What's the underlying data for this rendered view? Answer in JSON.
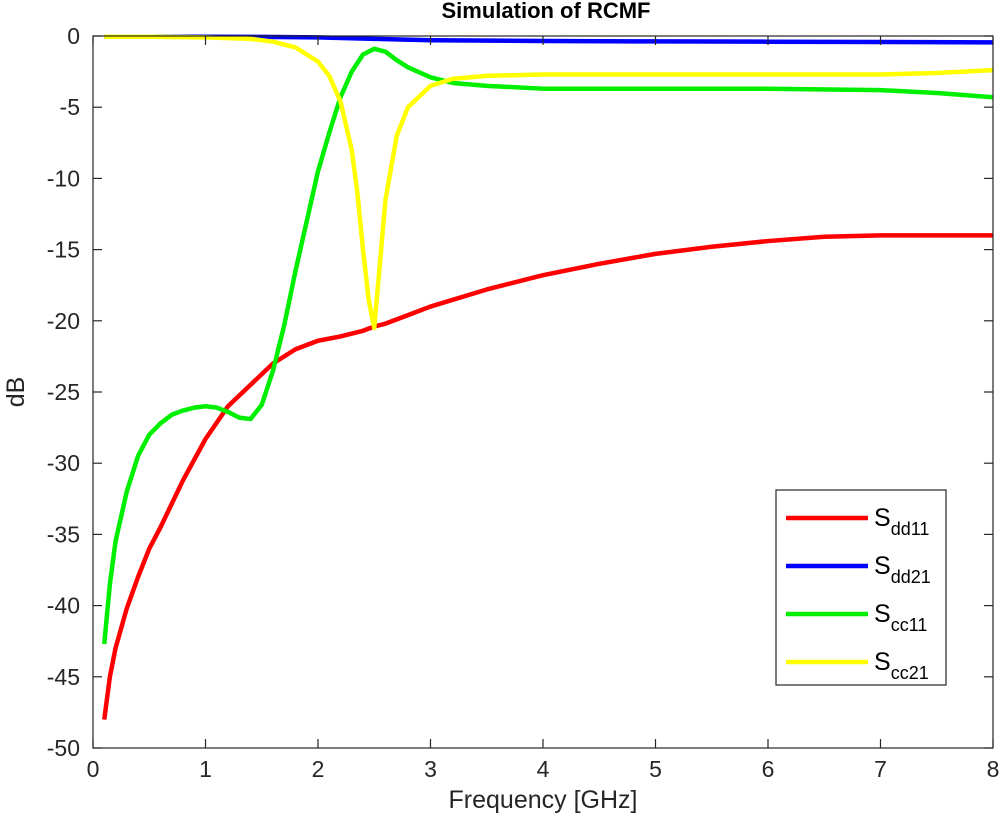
{
  "chart_data": {
    "type": "line",
    "title": "Simulation of RCMF",
    "xlabel": "Frequency [GHz]",
    "ylabel": "dB",
    "xlim": [
      0,
      8
    ],
    "ylim": [
      -50,
      0
    ],
    "xticks": [
      0,
      1,
      2,
      3,
      4,
      5,
      6,
      7,
      8
    ],
    "yticks": [
      0,
      -5,
      -10,
      -15,
      -20,
      -25,
      -30,
      -35,
      -40,
      -45,
      -50
    ],
    "xtick_labels": [
      "0",
      "1",
      "2",
      "3",
      "4",
      "5",
      "6",
      "7",
      "8"
    ],
    "ytick_labels": [
      "0",
      "-5",
      "-10",
      "-15",
      "-20",
      "-25",
      "-30",
      "-35",
      "-40",
      "-45",
      "-50"
    ],
    "grid": false,
    "legend_position": "bottom-right",
    "series": [
      {
        "name": "S_dd11",
        "legend_main": "S",
        "legend_sub": "dd11",
        "color": "#ff0000",
        "x": [
          0.1,
          0.15,
          0.2,
          0.3,
          0.4,
          0.5,
          0.6,
          0.8,
          1.0,
          1.2,
          1.4,
          1.6,
          1.8,
          2.0,
          2.2,
          2.4,
          2.5,
          2.6,
          2.8,
          3.0,
          3.5,
          4.0,
          4.5,
          5.0,
          5.5,
          6.0,
          6.5,
          7.0,
          7.5,
          8.0
        ],
        "y": [
          -48,
          -45,
          -43,
          -40.2,
          -38,
          -36,
          -34.5,
          -31.2,
          -28.3,
          -26,
          -24.5,
          -23,
          -22,
          -21.4,
          -21.1,
          -20.7,
          -20.4,
          -20.2,
          -19.6,
          -19,
          -17.8,
          -16.8,
          -16,
          -15.3,
          -14.8,
          -14.4,
          -14.1,
          -14,
          -14,
          -14
        ]
      },
      {
        "name": "S_dd21",
        "legend_main": "S",
        "legend_sub": "dd21",
        "color": "#0000ff",
        "x": [
          0.1,
          0.5,
          1.0,
          1.5,
          2.0,
          2.5,
          3.0,
          4.0,
          5.0,
          6.0,
          7.0,
          8.0
        ],
        "y": [
          -0.05,
          -0.05,
          -0.05,
          -0.06,
          -0.1,
          -0.2,
          -0.3,
          -0.35,
          -0.38,
          -0.4,
          -0.42,
          -0.45
        ]
      },
      {
        "name": "S_cc11",
        "legend_main": "S",
        "legend_sub": "cc11",
        "color": "#00ee00",
        "x": [
          0.1,
          0.15,
          0.2,
          0.3,
          0.4,
          0.5,
          0.6,
          0.7,
          0.8,
          0.9,
          1.0,
          1.1,
          1.2,
          1.3,
          1.4,
          1.5,
          1.6,
          1.7,
          1.8,
          1.9,
          2.0,
          2.1,
          2.2,
          2.3,
          2.4,
          2.5,
          2.6,
          2.7,
          2.8,
          3.0,
          3.2,
          3.5,
          4.0,
          5.0,
          6.0,
          7.0,
          7.5,
          8.0
        ],
        "y": [
          -42.7,
          -38.5,
          -35.5,
          -32,
          -29.5,
          -28,
          -27.2,
          -26.6,
          -26.3,
          -26.1,
          -26,
          -26.1,
          -26.4,
          -26.8,
          -26.9,
          -25.9,
          -23.5,
          -20.3,
          -16.5,
          -13,
          -9.5,
          -6.8,
          -4.3,
          -2.5,
          -1.3,
          -0.9,
          -1.1,
          -1.7,
          -2.2,
          -2.9,
          -3.3,
          -3.5,
          -3.7,
          -3.7,
          -3.7,
          -3.8,
          -4,
          -4.3
        ]
      },
      {
        "name": "S_cc21",
        "legend_main": "S",
        "legend_sub": "cc21",
        "color": "#ffff00",
        "x": [
          0.1,
          0.5,
          1.0,
          1.4,
          1.6,
          1.8,
          2.0,
          2.1,
          2.2,
          2.3,
          2.35,
          2.4,
          2.45,
          2.5,
          2.55,
          2.6,
          2.7,
          2.8,
          3.0,
          3.2,
          3.5,
          4.0,
          5.0,
          6.0,
          7.0,
          7.5,
          8.0
        ],
        "y": [
          -0.05,
          -0.05,
          -0.1,
          -0.2,
          -0.4,
          -0.8,
          -1.8,
          -2.8,
          -4.6,
          -8,
          -11,
          -15,
          -18.5,
          -20.5,
          -16,
          -11.5,
          -7,
          -5,
          -3.5,
          -3,
          -2.8,
          -2.7,
          -2.7,
          -2.7,
          -2.7,
          -2.6,
          -2.4
        ]
      }
    ]
  }
}
